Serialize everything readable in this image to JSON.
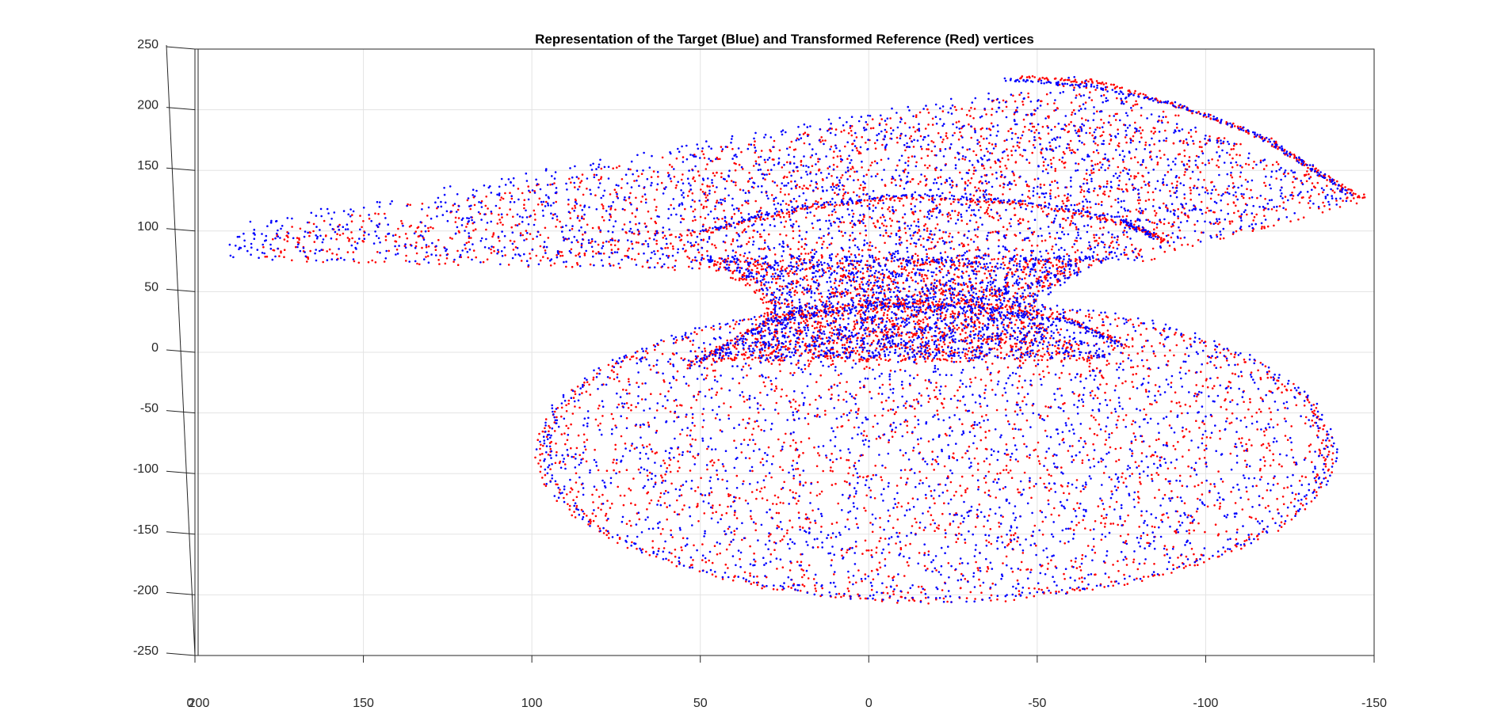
{
  "chart_data": {
    "type": "scatter",
    "title": "Representation of the Target (Blue) and Transformed Reference (Red) vertices",
    "xlabel": "",
    "ylabel": "",
    "xlim": [
      200,
      -150
    ],
    "ylim": [
      -250,
      250
    ],
    "x_reversed": true,
    "grid": true,
    "x_ticks": [
      200,
      150,
      100,
      50,
      0,
      -50,
      -100,
      -150
    ],
    "x_tick_labels": [
      "200",
      "150",
      "100",
      "50",
      "0",
      "-50",
      "-100",
      "-150"
    ],
    "y_ticks": [
      250,
      200,
      150,
      100,
      50,
      0,
      -50,
      -100,
      -150,
      -200,
      -250
    ],
    "y_tick_labels": [
      "250",
      "200",
      "150",
      "100",
      "50",
      "0",
      "-50",
      "-100",
      "-150",
      "-200",
      "-250"
    ],
    "z_axis_label": "0",
    "view": "3d-near-top",
    "series_colors": {
      "target": "#0000ff",
      "reference": "#ff0000"
    },
    "series": [
      {
        "key": "target",
        "color": "#0000ff",
        "regions": [
          {
            "shape": "ellipse",
            "cx": -20,
            "cy": -80,
            "rx": 118,
            "ry": 125,
            "density": 0.55
          },
          {
            "shape": "band",
            "x_left": 190,
            "x_right": -145,
            "y_top_left": 105,
            "y_top_peak": 228,
            "y_bottom": 72,
            "density": 0.6
          },
          {
            "shape": "neck",
            "x_left": 52,
            "x_right": -75,
            "y_bottom": -5,
            "y_top": 80,
            "density": 0.5
          }
        ],
        "outlines": [
          {
            "x": [
              52,
              30,
              0,
              -30,
              -60,
              -75
            ],
            "y": [
              -10,
              25,
              38,
              38,
              25,
              5
            ]
          },
          {
            "x": [
              50,
              20,
              -10,
              -45,
              -75,
              -85
            ],
            "y": [
              100,
              120,
              130,
              125,
              110,
              95
            ]
          },
          {
            "x": [
              -40,
              -65,
              -90,
              -115,
              -130,
              -143
            ],
            "y": [
              225,
              220,
              205,
              180,
              155,
              130
            ]
          }
        ]
      },
      {
        "key": "reference",
        "color": "#ff0000",
        "regions": [
          {
            "shape": "ellipse",
            "cx": -20,
            "cy": -82,
            "rx": 118,
            "ry": 124,
            "density": 0.55
          },
          {
            "shape": "band",
            "x_left": 180,
            "x_right": -148,
            "y_top_left": 100,
            "y_top_peak": 226,
            "y_bottom": 70,
            "density": 0.6
          },
          {
            "shape": "neck",
            "x_left": 54,
            "x_right": -72,
            "y_bottom": -8,
            "y_top": 78,
            "density": 0.5
          }
        ],
        "outlines": [
          {
            "x": [
              54,
              30,
              0,
              -30,
              -60,
              -78
            ],
            "y": [
              -12,
              27,
              40,
              40,
              27,
              3
            ]
          },
          {
            "x": [
              52,
              20,
              -10,
              -45,
              -75,
              -88
            ],
            "y": [
              98,
              118,
              128,
              123,
              108,
              92
            ]
          },
          {
            "x": [
              -45,
              -70,
              -95,
              -118,
              -132,
              -147
            ],
            "y": [
              227,
              222,
              200,
              176,
              150,
              126
            ]
          }
        ]
      }
    ]
  }
}
